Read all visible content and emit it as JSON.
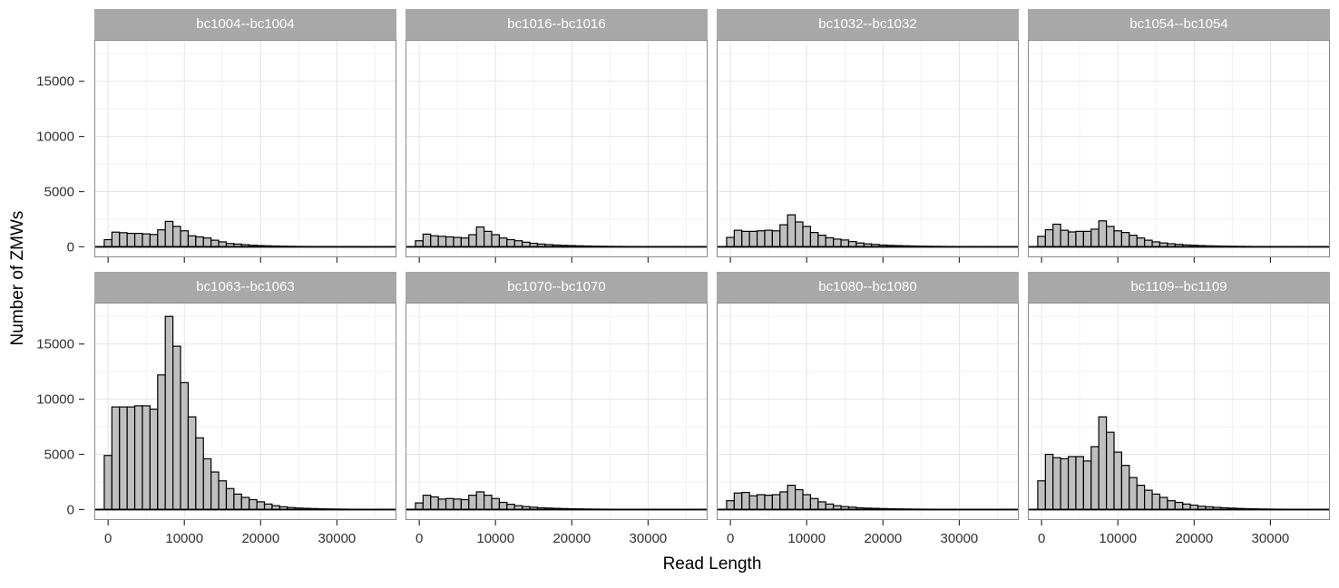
{
  "chart_data": {
    "type": "bar",
    "subtype": "faceted_histogram",
    "title": "",
    "xlabel": "Read Length",
    "ylabel": "Number of ZMWs",
    "facet_layout": {
      "rows": 2,
      "cols": 4
    },
    "x_bin_width": 1000,
    "x_bin_center_start": 0,
    "x_ticks": [
      0,
      10000,
      20000,
      30000
    ],
    "y_ticks": [
      0,
      5000,
      10000,
      15000
    ],
    "x_minor_ticks": [
      5000,
      15000,
      25000,
      35000
    ],
    "y_minor_ticks": [
      2500,
      7500,
      12500,
      17500
    ],
    "xlim": [
      -1800,
      37800
    ],
    "ylim": [
      -950,
      18750
    ],
    "grid": "major+minor",
    "legend": "none",
    "facets": [
      {
        "title": "bc1004--bc1004",
        "values": [
          650,
          1330,
          1280,
          1220,
          1220,
          1170,
          1120,
          1540,
          2300,
          1850,
          1450,
          1000,
          900,
          800,
          600,
          450,
          300,
          250,
          190,
          140,
          110,
          90,
          70,
          55,
          45,
          35,
          30,
          25,
          20,
          15,
          12,
          10,
          8,
          7,
          6,
          5
        ]
      },
      {
        "title": "bc1016--bc1016",
        "values": [
          550,
          1150,
          1000,
          950,
          900,
          850,
          800,
          1100,
          1800,
          1400,
          1100,
          800,
          650,
          550,
          420,
          320,
          250,
          200,
          160,
          130,
          110,
          90,
          75,
          60,
          50,
          40,
          35,
          30,
          25,
          20,
          17,
          14,
          12,
          10,
          8,
          6
        ]
      },
      {
        "title": "bc1032--bc1032",
        "values": [
          850,
          1500,
          1400,
          1400,
          1450,
          1500,
          1450,
          2000,
          2900,
          2250,
          1850,
          1300,
          1050,
          820,
          700,
          620,
          480,
          350,
          270,
          215,
          160,
          130,
          110,
          90,
          75,
          60,
          50,
          40,
          35,
          30,
          25,
          20,
          18,
          15,
          12,
          10
        ]
      },
      {
        "title": "bc1054--bc1054",
        "values": [
          950,
          1550,
          2050,
          1500,
          1350,
          1400,
          1400,
          1600,
          2350,
          1850,
          1450,
          1300,
          1050,
          800,
          600,
          450,
          350,
          280,
          220,
          170,
          140,
          110,
          90,
          75,
          60,
          50,
          40,
          35,
          28,
          22,
          18,
          15,
          12,
          10,
          8,
          6
        ]
      },
      {
        "title": "bc1063--bc1063",
        "values": [
          4900,
          9300,
          9300,
          9300,
          9400,
          9400,
          9100,
          12200,
          17500,
          14800,
          11500,
          8400,
          6500,
          4600,
          3400,
          2600,
          1900,
          1400,
          1100,
          900,
          700,
          500,
          350,
          250,
          180,
          140,
          110,
          90,
          70,
          55,
          45,
          35,
          28,
          22,
          18,
          15
        ]
      },
      {
        "title": "bc1070--bc1070",
        "values": [
          600,
          1300,
          1150,
          950,
          1000,
          950,
          900,
          1300,
          1600,
          1300,
          1000,
          650,
          480,
          350,
          270,
          215,
          160,
          135,
          110,
          90,
          75,
          60,
          50,
          42,
          35,
          30,
          25,
          20,
          17,
          14,
          12,
          10,
          8,
          7,
          6,
          5
        ]
      },
      {
        "title": "bc1080--bc1080",
        "values": [
          800,
          1500,
          1550,
          1250,
          1350,
          1300,
          1350,
          1600,
          2200,
          1800,
          1350,
          1000,
          700,
          500,
          350,
          270,
          220,
          160,
          130,
          110,
          90,
          75,
          60,
          50,
          42,
          35,
          30,
          25,
          20,
          17,
          14,
          12,
          10,
          8,
          7,
          6
        ]
      },
      {
        "title": "bc1109--bc1109",
        "values": [
          2600,
          5000,
          4700,
          4600,
          4800,
          4800,
          4400,
          5700,
          8400,
          7000,
          5200,
          4000,
          2900,
          2200,
          1750,
          1400,
          1100,
          800,
          650,
          500,
          400,
          300,
          250,
          200,
          160,
          130,
          100,
          80,
          65,
          50,
          40,
          32,
          25,
          20,
          16,
          13
        ]
      }
    ],
    "colors": {
      "bar_fill": "#BFBFBF",
      "bar_stroke": "#000000",
      "strip_bg": "#A8A8A8",
      "strip_text": "#FFFFFF",
      "grid_major": "#E4E4E4",
      "grid_minor": "#F1F1F1",
      "panel_border": "#898989",
      "tick_mark": "#333333",
      "tick_label": "#303030",
      "axis_title": "#000000",
      "baseline": "#000000"
    }
  }
}
